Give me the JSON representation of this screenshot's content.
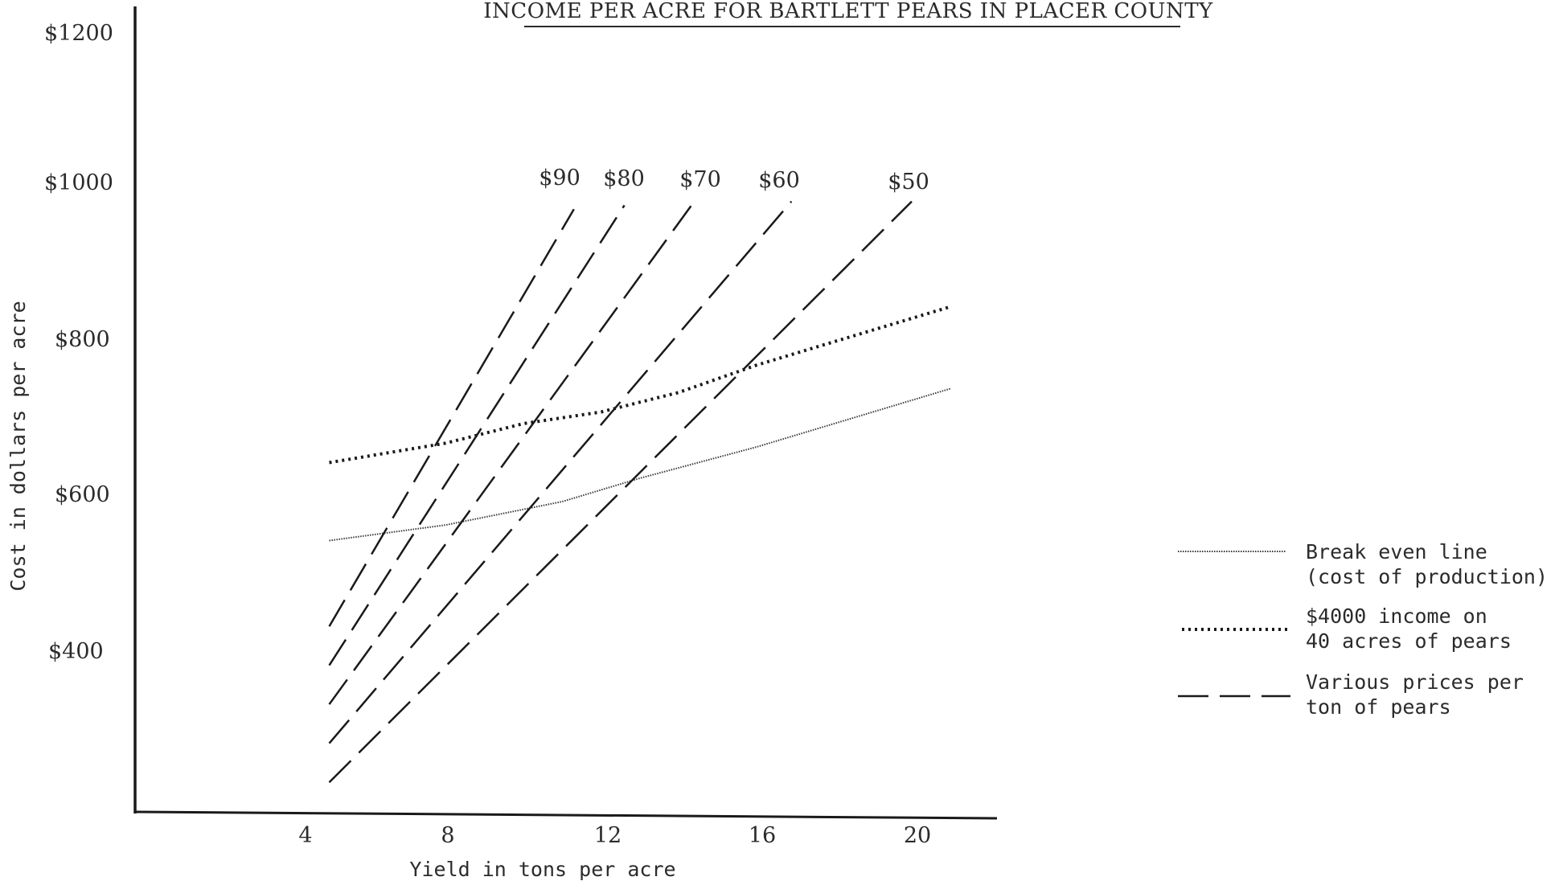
{
  "chart_data": {
    "type": "line",
    "title": "INCOME PER ACRE FOR BARTLETT PEARS IN PLACER COUNTY",
    "xlabel": "Yield in tons per acre",
    "ylabel": "Cost in dollars per acre",
    "xlim": [
      0,
      22
    ],
    "ylim": [
      200,
      1200
    ],
    "x_ticks": [
      4,
      8,
      12,
      16,
      20
    ],
    "x_tick_labels": [
      "4",
      "8",
      "12",
      "16",
      "20"
    ],
    "y_ticks": [
      400,
      600,
      800,
      1000,
      1200
    ],
    "y_tick_labels": [
      "$400",
      "$600",
      "$800",
      "$1000",
      "$1200"
    ],
    "grid": false,
    "legend_position": "right",
    "legend": [
      {
        "style": "fine-dotted",
        "lines": [
          "Break even line",
          "(cost of production)"
        ]
      },
      {
        "style": "dotted",
        "lines": [
          "$4000 income on",
          "40 acres of pears"
        ]
      },
      {
        "style": "dashed",
        "lines": [
          "Various prices per",
          "ton of pears"
        ]
      }
    ],
    "series": [
      {
        "name": "Break even line (cost of production)",
        "style": "fine-dotted",
        "x": [
          5,
          8,
          11,
          13,
          16,
          19,
          21
        ],
        "y": [
          550,
          570,
          600,
          630,
          670,
          715,
          745
        ]
      },
      {
        "name": "$4000 income on 40 acres of pears",
        "style": "dotted",
        "x": [
          5,
          8,
          10,
          12,
          14,
          16,
          18,
          21
        ],
        "y": [
          650,
          675,
          700,
          715,
          740,
          775,
          805,
          850
        ]
      },
      {
        "name": "$90",
        "style": "dashed",
        "label": "$90",
        "x": [
          5,
          11.3
        ],
        "y": [
          440,
          975
        ]
      },
      {
        "name": "$80",
        "style": "dashed",
        "label": "$80",
        "x": [
          5,
          12.6
        ],
        "y": [
          390,
          980
        ]
      },
      {
        "name": "$70",
        "style": "dashed",
        "label": "$70",
        "x": [
          5,
          14.4
        ],
        "y": [
          340,
          985
        ]
      },
      {
        "name": "$60",
        "style": "dashed",
        "label": "$60",
        "x": [
          5,
          16.9
        ],
        "y": [
          290,
          985
        ]
      },
      {
        "name": "$50",
        "style": "dashed",
        "label": "$50",
        "x": [
          5,
          20.0
        ],
        "y": [
          240,
          985
        ]
      }
    ]
  }
}
